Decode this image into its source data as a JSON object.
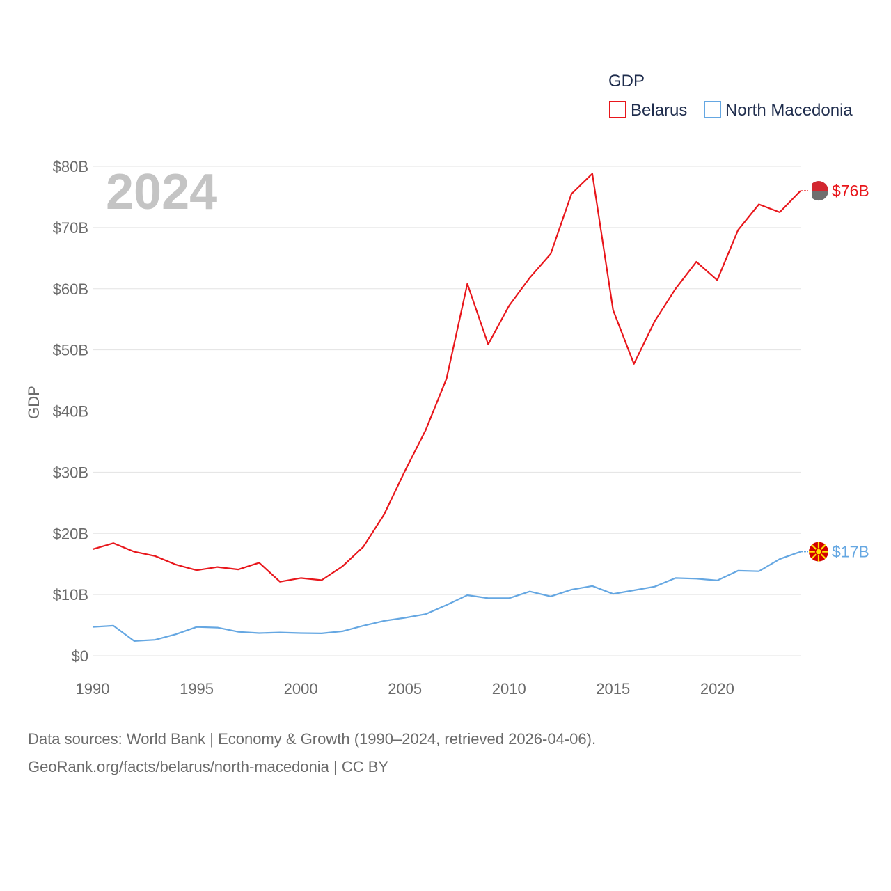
{
  "chart_data": {
    "type": "line",
    "legend_title": "GDP",
    "ylabel": "GDP",
    "xlabel": "",
    "year_label": "2024",
    "x": [
      1990,
      1991,
      1992,
      1993,
      1994,
      1995,
      1996,
      1997,
      1998,
      1999,
      2000,
      2001,
      2002,
      2003,
      2004,
      2005,
      2006,
      2007,
      2008,
      2009,
      2010,
      2011,
      2012,
      2013,
      2014,
      2015,
      2016,
      2017,
      2018,
      2019,
      2020,
      2021,
      2022,
      2023,
      2024
    ],
    "xlim": [
      1990,
      2024
    ],
    "ylim": [
      0,
      80
    ],
    "y_unit": "billion USD",
    "x_ticks": [
      1990,
      1995,
      2000,
      2005,
      2010,
      2015,
      2020
    ],
    "y_ticks": [
      0,
      10,
      20,
      30,
      40,
      50,
      60,
      70,
      80
    ],
    "y_tick_labels": [
      "$0",
      "$10B",
      "$20B",
      "$30B",
      "$40B",
      "$50B",
      "$60B",
      "$70B",
      "$80B"
    ],
    "grid": true,
    "legend_position": "top-right",
    "series": [
      {
        "name": "Belarus",
        "color": "#e8161b",
        "end_label": "$76B",
        "values": [
          17.4,
          18.4,
          17.0,
          16.3,
          14.9,
          13.97,
          14.5,
          14.1,
          15.2,
          12.1,
          12.7,
          12.35,
          14.6,
          17.8,
          23.1,
          30.2,
          36.9,
          45.3,
          60.8,
          50.9,
          57.2,
          61.8,
          65.7,
          75.5,
          78.8,
          56.5,
          47.7,
          54.7,
          60.0,
          64.4,
          61.4,
          69.6,
          73.8,
          72.5,
          76.0
        ],
        "flag_colors": [
          "#d22730",
          "#6f6f6f"
        ]
      },
      {
        "name": "North Macedonia",
        "color": "#65a7e2",
        "end_label": "$17B",
        "values": [
          4.7,
          4.9,
          2.4,
          2.6,
          3.5,
          4.7,
          4.6,
          3.9,
          3.7,
          3.8,
          3.7,
          3.65,
          4.0,
          4.9,
          5.7,
          6.2,
          6.8,
          8.3,
          9.9,
          9.4,
          9.4,
          10.5,
          9.7,
          10.8,
          11.4,
          10.1,
          10.7,
          11.3,
          12.7,
          12.6,
          12.3,
          13.9,
          13.8,
          15.8,
          17.0
        ],
        "flag_colors": [
          "#d20000",
          "#ffe600"
        ]
      }
    ]
  },
  "source": {
    "line1": "Data sources: World Bank | Economy & Growth (1990–2024, retrieved 2026-04-06).",
    "line2": "GeoRank.org/facts/belarus/north-macedonia | CC BY"
  }
}
